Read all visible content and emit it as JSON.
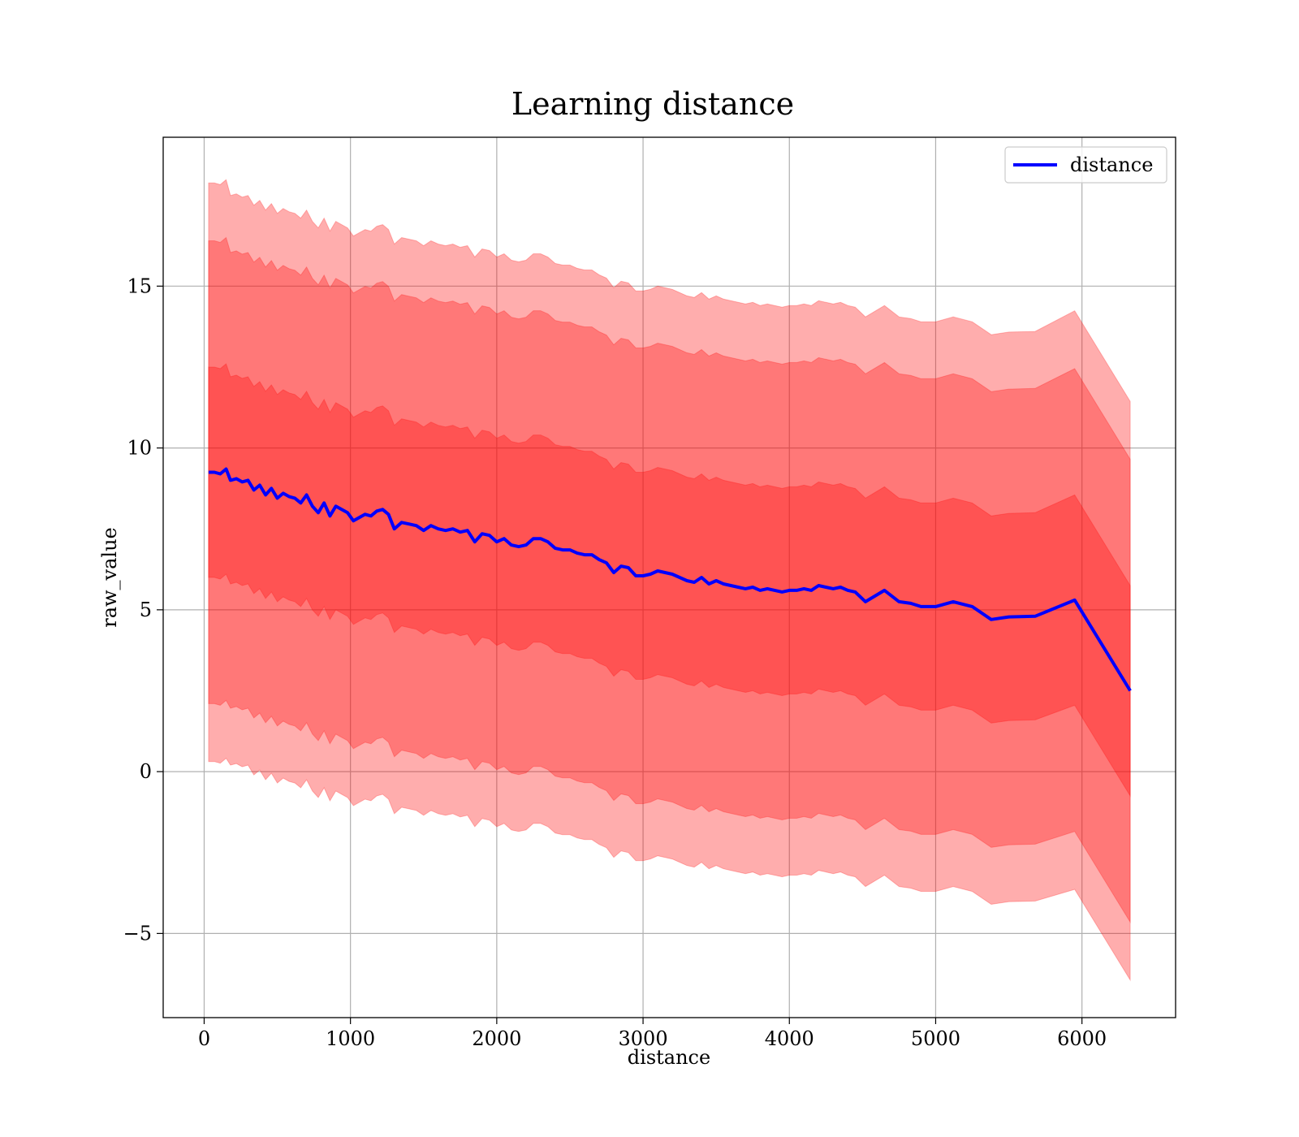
{
  "chart_data": {
    "type": "line",
    "title": "Learning distance",
    "xlabel": "distance",
    "ylabel": "raw_value",
    "xlim": [
      -280,
      6640
    ],
    "ylim": [
      -7.6,
      19.6
    ],
    "xticks": [
      0,
      1000,
      2000,
      3000,
      4000,
      5000,
      6000
    ],
    "xtick_labels": [
      "0",
      "1000",
      "2000",
      "3000",
      "4000",
      "5000",
      "6000"
    ],
    "yticks": [
      -5,
      0,
      5,
      10,
      15
    ],
    "ytick_labels": [
      "−5",
      "0",
      "5",
      "10",
      "15"
    ],
    "grid": true,
    "legend_position": "top-right",
    "colors": {
      "line": "#0000ff",
      "band": "#ff0000",
      "grid": "#b0b0b0"
    },
    "series": [
      {
        "name": "distance",
        "x": [
          30,
          70,
          110,
          150,
          180,
          220,
          260,
          300,
          340,
          380,
          420,
          460,
          500,
          540,
          580,
          620,
          660,
          700,
          740,
          780,
          820,
          860,
          900,
          940,
          980,
          1020,
          1060,
          1100,
          1140,
          1180,
          1220,
          1260,
          1300,
          1350,
          1400,
          1450,
          1500,
          1550,
          1600,
          1650,
          1700,
          1750,
          1800,
          1850,
          1900,
          1950,
          2000,
          2050,
          2100,
          2150,
          2200,
          2250,
          2300,
          2350,
          2400,
          2450,
          2500,
          2550,
          2600,
          2650,
          2700,
          2750,
          2800,
          2850,
          2900,
          2950,
          3000,
          3050,
          3100,
          3150,
          3200,
          3250,
          3300,
          3350,
          3400,
          3450,
          3500,
          3550,
          3600,
          3650,
          3700,
          3750,
          3800,
          3850,
          3900,
          3950,
          4000,
          4050,
          4100,
          4150,
          4200,
          4250,
          4300,
          4350,
          4400,
          4450,
          4520,
          4650,
          4750,
          4830,
          4900,
          5000,
          5120,
          5250,
          5380,
          5500,
          5680,
          5950,
          6330
        ],
        "y": [
          9.25,
          9.25,
          9.2,
          9.35,
          9.0,
          9.05,
          8.95,
          9.0,
          8.7,
          8.85,
          8.55,
          8.75,
          8.45,
          8.6,
          8.5,
          8.45,
          8.3,
          8.55,
          8.2,
          8.0,
          8.3,
          7.9,
          8.2,
          8.1,
          8.0,
          7.75,
          7.85,
          7.95,
          7.9,
          8.05,
          8.1,
          7.95,
          7.5,
          7.7,
          7.65,
          7.6,
          7.45,
          7.6,
          7.5,
          7.45,
          7.5,
          7.4,
          7.45,
          7.1,
          7.35,
          7.3,
          7.1,
          7.2,
          7.0,
          6.95,
          7.0,
          7.2,
          7.2,
          7.1,
          6.9,
          6.85,
          6.85,
          6.75,
          6.7,
          6.7,
          6.55,
          6.45,
          6.15,
          6.35,
          6.3,
          6.05,
          6.05,
          6.1,
          6.2,
          6.15,
          6.1,
          6.0,
          5.9,
          5.85,
          6.0,
          5.8,
          5.9,
          5.8,
          5.75,
          5.7,
          5.65,
          5.7,
          5.6,
          5.65,
          5.6,
          5.55,
          5.6,
          5.6,
          5.65,
          5.6,
          5.75,
          5.7,
          5.65,
          5.7,
          5.6,
          5.55,
          5.25,
          5.6,
          5.25,
          5.2,
          5.1,
          5.1,
          5.25,
          5.1,
          4.7,
          4.78,
          4.8,
          5.3,
          2.5
        ],
        "std": [
          3.25,
          3.25,
          3.25,
          3.25,
          3.2,
          3.2,
          3.2,
          3.2,
          3.2,
          3.2,
          3.2,
          3.2,
          3.2,
          3.2,
          3.2,
          3.2,
          3.2,
          3.2,
          3.2,
          3.2,
          3.2,
          3.2,
          3.2,
          3.2,
          3.2,
          3.2,
          3.2,
          3.2,
          3.2,
          3.2,
          3.2,
          3.2,
          3.2,
          3.2,
          3.2,
          3.2,
          3.2,
          3.2,
          3.2,
          3.2,
          3.2,
          3.2,
          3.2,
          3.2,
          3.2,
          3.2,
          3.2,
          3.2,
          3.2,
          3.2,
          3.2,
          3.2,
          3.2,
          3.2,
          3.2,
          3.2,
          3.2,
          3.2,
          3.2,
          3.2,
          3.2,
          3.2,
          3.2,
          3.2,
          3.2,
          3.2,
          3.2,
          3.2,
          3.2,
          3.2,
          3.2,
          3.2,
          3.2,
          3.2,
          3.2,
          3.2,
          3.2,
          3.2,
          3.2,
          3.2,
          3.2,
          3.2,
          3.2,
          3.2,
          3.2,
          3.2,
          3.2,
          3.2,
          3.2,
          3.2,
          3.2,
          3.2,
          3.2,
          3.2,
          3.2,
          3.2,
          3.2,
          3.2,
          3.2,
          3.2,
          3.2,
          3.2,
          3.2,
          3.2,
          3.2,
          3.2,
          3.2,
          3.25,
          3.25
        ]
      }
    ],
    "bands": [
      {
        "sigma": 2.75,
        "opacity": 0.32
      },
      {
        "sigma": 2.2,
        "opacity": 0.3
      },
      {
        "sigma": 1.0,
        "opacity": 0.3
      }
    ]
  }
}
